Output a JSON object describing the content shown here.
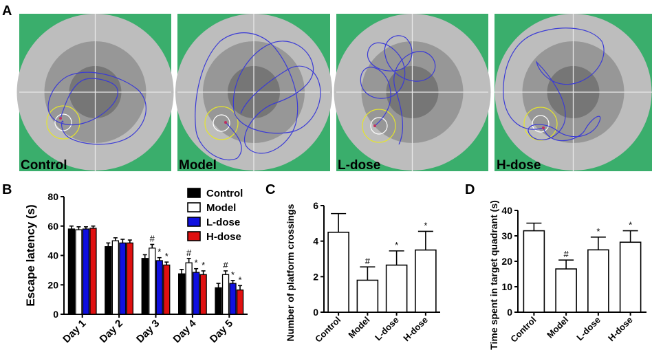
{
  "panel_labels": {
    "a": "A",
    "b": "B",
    "c": "C",
    "d": "D"
  },
  "maze_panels": [
    {
      "label": "Control"
    },
    {
      "label": "Model"
    },
    {
      "label": "L-dose"
    },
    {
      "label": "H-dose"
    }
  ],
  "colors": {
    "background_green": "#3aae6c",
    "pool_outer": "#bdbdbd",
    "pool_mid": "#979797",
    "pool_inner": "#767676",
    "path": "#3a3ad6",
    "target_ring": "#e6e62a",
    "control": "#000000",
    "model": "#ffffff",
    "l_dose": "#1010e0",
    "h_dose": "#e01010"
  },
  "chart_data": [
    {
      "type": "bar",
      "panel": "B",
      "title": "",
      "xlabel": "",
      "ylabel": "Escape latency (s)",
      "ylim": [
        0,
        80
      ],
      "yticks": [
        0,
        20,
        40,
        60,
        80
      ],
      "categories": [
        "Day 1",
        "Day 2",
        "Day 3",
        "Day 4",
        "Day 5"
      ],
      "legend": [
        "Control",
        "Model",
        "L-dose",
        "H-dose"
      ],
      "legend_position": "top-right",
      "series": [
        {
          "name": "Control",
          "values": [
            58,
            46,
            38,
            27.5,
            18
          ],
          "errors": [
            2,
            2.5,
            2.5,
            3,
            3
          ],
          "marks": [
            "",
            "",
            "",
            "",
            ""
          ]
        },
        {
          "name": "Model",
          "values": [
            57.5,
            50,
            45,
            35,
            27
          ],
          "errors": [
            2,
            2,
            2.5,
            3,
            2.5
          ],
          "marks": [
            "",
            "",
            "#",
            "#",
            "#"
          ]
        },
        {
          "name": "L-dose",
          "values": [
            58,
            48.5,
            36.5,
            28.5,
            21
          ],
          "errors": [
            1.5,
            2.5,
            2,
            2.5,
            2
          ],
          "marks": [
            "",
            "",
            "*",
            "*",
            "*"
          ]
        },
        {
          "name": "H-dose",
          "values": [
            58.5,
            48.5,
            33.5,
            27,
            16.5
          ],
          "errors": [
            1.5,
            2,
            2,
            2.5,
            3
          ],
          "marks": [
            "",
            "",
            "*",
            "*",
            "*"
          ]
        }
      ]
    },
    {
      "type": "bar",
      "panel": "C",
      "title": "",
      "xlabel": "",
      "ylabel": "Number of platform crossings",
      "ylim": [
        0,
        6
      ],
      "yticks": [
        0,
        2,
        4,
        6
      ],
      "categories": [
        "Control",
        "Model",
        "L-dose",
        "H-dose"
      ],
      "values": [
        4.5,
        1.8,
        2.65,
        3.5
      ],
      "errors": [
        1.05,
        0.75,
        0.8,
        1.05
      ],
      "marks": [
        "",
        "#",
        "*",
        "*"
      ]
    },
    {
      "type": "bar",
      "panel": "D",
      "title": "",
      "xlabel": "",
      "ylabel": "Time spent in target quadrant (s)",
      "ylim": [
        0,
        40
      ],
      "yticks": [
        0,
        10,
        20,
        30,
        40
      ],
      "categories": [
        "Control",
        "Model",
        "L-dose",
        "H-dose"
      ],
      "values": [
        32,
        17,
        24.5,
        27.5
      ],
      "errors": [
        3,
        3.5,
        5,
        4.5
      ],
      "marks": [
        "",
        "#",
        "*",
        "*"
      ]
    }
  ]
}
